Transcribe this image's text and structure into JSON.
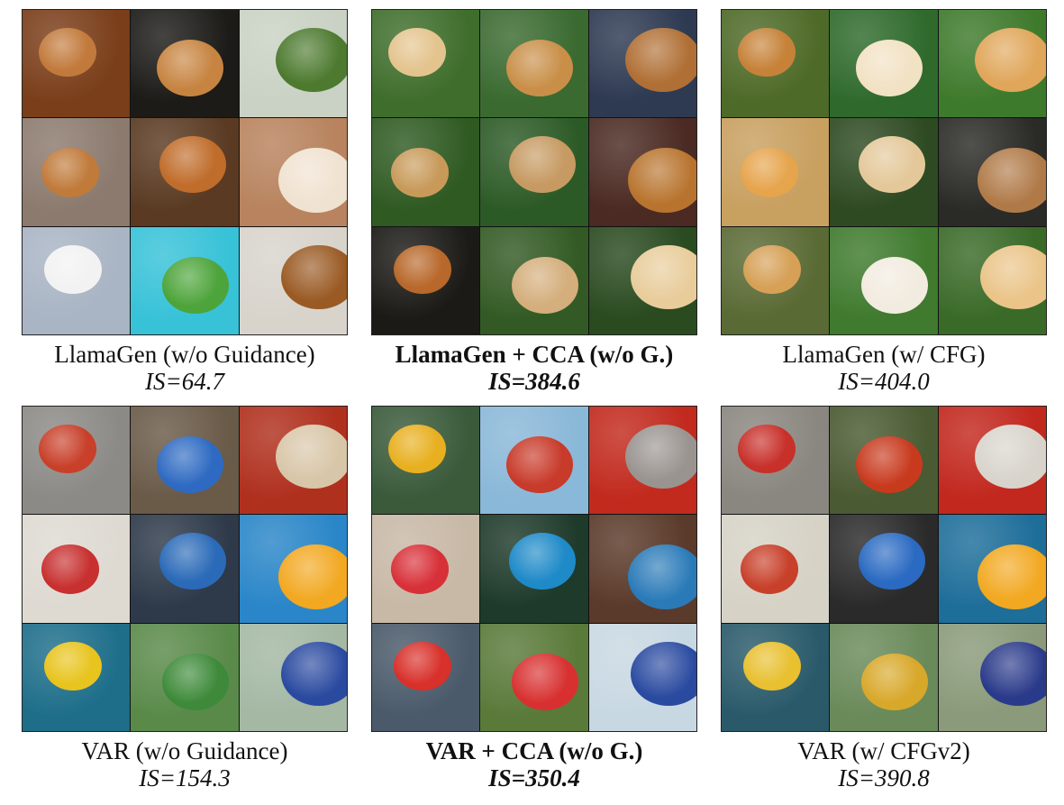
{
  "figure": {
    "panels": [
      {
        "title": "LlamaGen (w/o Guidance)",
        "metric": "IS=64.7",
        "bold": false,
        "tiles": [
          {
            "bg": "#7a3e1a",
            "fg": "#c27a3c"
          },
          {
            "bg": "#1c1b18",
            "fg": "#c78441"
          },
          {
            "bg": "#c9d2c4",
            "fg": "#4d7a2f"
          },
          {
            "bg": "#8c7a6e",
            "fg": "#c07a3a"
          },
          {
            "bg": "#5a3a22",
            "fg": "#c06c2a"
          },
          {
            "bg": "#b8835e",
            "fg": "#f0e2d0"
          },
          {
            "bg": "#a9b4c4",
            "fg": "#f2f2f2"
          },
          {
            "bg": "#38c2d8",
            "fg": "#4da43a"
          },
          {
            "bg": "#d8d4cc",
            "fg": "#9a5a24"
          }
        ]
      },
      {
        "title": "LlamaGen + CCA (w/o G.)",
        "metric": "IS=384.6",
        "bold": true,
        "tiles": [
          {
            "bg": "#3f6e2c",
            "fg": "#e4c48e"
          },
          {
            "bg": "#3a6a30",
            "fg": "#c98f48"
          },
          {
            "bg": "#2e3a52",
            "fg": "#b06f34"
          },
          {
            "bg": "#2f5a22",
            "fg": "#c89a5a"
          },
          {
            "bg": "#2c5a26",
            "fg": "#c69a62"
          },
          {
            "bg": "#4a2a22",
            "fg": "#b8742e"
          },
          {
            "bg": "#1c1a16",
            "fg": "#b8682a"
          },
          {
            "bg": "#335a24",
            "fg": "#d4ae7c"
          },
          {
            "bg": "#2a4a20",
            "fg": "#e8cc9a"
          }
        ]
      },
      {
        "title": "LlamaGen (w/ CFG)",
        "metric": "IS=404.0",
        "bold": false,
        "tiles": [
          {
            "bg": "#4e6a28",
            "fg": "#c68238"
          },
          {
            "bg": "#2f6a2c",
            "fg": "#f2e2c4"
          },
          {
            "bg": "#3e7a2c",
            "fg": "#e0a65a"
          },
          {
            "bg": "#c8a060",
            "fg": "#e6a44c"
          },
          {
            "bg": "#2e4a22",
            "fg": "#e4c89a"
          },
          {
            "bg": "#2a2a26",
            "fg": "#b07a48"
          },
          {
            "bg": "#5a6a34",
            "fg": "#d6a056"
          },
          {
            "bg": "#3f7a2e",
            "fg": "#f2ebe0"
          },
          {
            "bg": "#3a6a28",
            "fg": "#eac488"
          }
        ]
      },
      {
        "title": "VAR (w/o Guidance)",
        "metric": "IS=154.3",
        "bold": false,
        "tiles": [
          {
            "bg": "#8c8a86",
            "fg": "#c8402a"
          },
          {
            "bg": "#6a5a48",
            "fg": "#2e6ac2"
          },
          {
            "bg": "#b0301e",
            "fg": "#d8c6a8"
          },
          {
            "bg": "#dedad2",
            "fg": "#c83030"
          },
          {
            "bg": "#2e3a4a",
            "fg": "#2a6ab8"
          },
          {
            "bg": "#2a86c8",
            "fg": "#f2a820"
          },
          {
            "bg": "#1e6e8a",
            "fg": "#e8c41e"
          },
          {
            "bg": "#5a8a4a",
            "fg": "#3e8a3a"
          },
          {
            "bg": "#a4b8a4",
            "fg": "#2a4aa0"
          }
        ]
      },
      {
        "title": "VAR + CCA (w/o G.)",
        "metric": "IS=350.4",
        "bold": true,
        "tiles": [
          {
            "bg": "#3a5a3a",
            "fg": "#e8b020"
          },
          {
            "bg": "#8ab8d8",
            "fg": "#c83a2a"
          },
          {
            "bg": "#c22a1e",
            "fg": "#9a9490"
          },
          {
            "bg": "#c8b8a6",
            "fg": "#d83038"
          },
          {
            "bg": "#1e3a2a",
            "fg": "#1e8ac8"
          },
          {
            "bg": "#5a3a2a",
            "fg": "#2a7ab8"
          },
          {
            "bg": "#4a5a6a",
            "fg": "#d8302a"
          },
          {
            "bg": "#5a7a3a",
            "fg": "#d83030"
          },
          {
            "bg": "#c8d8e2",
            "fg": "#2a4aa0"
          }
        ]
      },
      {
        "title": "VAR (w/ CFGv2)",
        "metric": "IS=390.8",
        "bold": false,
        "tiles": [
          {
            "bg": "#8a8680",
            "fg": "#c8302a"
          },
          {
            "bg": "#4a5a32",
            "fg": "#c83a1e"
          },
          {
            "bg": "#c2281e",
            "fg": "#d8d4cc"
          },
          {
            "bg": "#d6d2c6",
            "fg": "#c8402a"
          },
          {
            "bg": "#2a2a2a",
            "fg": "#2a6ac2"
          },
          {
            "bg": "#1e6e9a",
            "fg": "#f2a820"
          },
          {
            "bg": "#2a5a6a",
            "fg": "#e8c030"
          },
          {
            "bg": "#6a8a5a",
            "fg": "#d8a82a"
          },
          {
            "bg": "#8a9a7a",
            "fg": "#2a3a8a"
          }
        ]
      }
    ]
  }
}
